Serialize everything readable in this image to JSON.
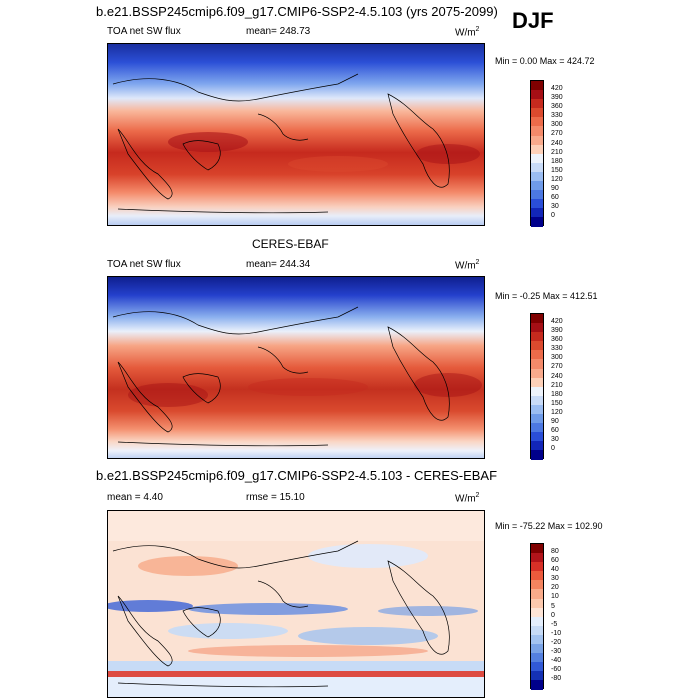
{
  "panel1": {
    "title": "b.e21.BSSP245cmip6.f09_g17.CMIP6-SSP2-4.5.103 (yrs 2075-2099)",
    "left": "TOA net SW flux",
    "center": "mean= 248.73",
    "units": "W/m",
    "units_sup": "2",
    "minmax": "Min =   0.00 Max = 424.72",
    "ticks": [
      "420",
      "390",
      "360",
      "330",
      "300",
      "270",
      "240",
      "210",
      "180",
      "150",
      "120",
      "90",
      "60",
      "30",
      "0"
    ]
  },
  "season": "DJF",
  "panel2": {
    "title": "CERES-EBAF",
    "left": "TOA net SW flux",
    "center": "mean= 244.34",
    "units": "W/m",
    "units_sup": "2",
    "minmax": "Min =  -0.25 Max = 412.51",
    "ticks": [
      "420",
      "390",
      "360",
      "330",
      "300",
      "270",
      "240",
      "210",
      "180",
      "150",
      "120",
      "90",
      "60",
      "30",
      "0"
    ]
  },
  "panel3": {
    "title": "b.e21.BSSP245cmip6.f09_g17.CMIP6-SSP2-4.5.103 - CERES-EBAF",
    "left": "mean =   4.40",
    "center": "rmse =  15.10",
    "units": "W/m",
    "units_sup": "2",
    "minmax": "Min = -75.22 Max = 102.90",
    "ticks": [
      "80",
      "60",
      "40",
      "30",
      "20",
      "10",
      "5",
      "0",
      "-5",
      "-10",
      "-20",
      "-30",
      "-40",
      "-60",
      "-80"
    ]
  },
  "colors": {
    "abs_scale": [
      "#7f0000",
      "#a50f15",
      "#c62a1e",
      "#db4a2e",
      "#ec6b4a",
      "#f48a6a",
      "#f9aa8c",
      "#fdd0b8",
      "#eef3fb",
      "#c9dbf7",
      "#9bbdf2",
      "#6f9be9",
      "#4c78e2",
      "#2a4ed8",
      "#1226b8",
      "#00008b"
    ],
    "diff_scale": [
      "#7f0000",
      "#b2141a",
      "#d73027",
      "#ec5a3c",
      "#f4845f",
      "#f9ab8a",
      "#fcc9ae",
      "#fde4d6",
      "#e4eefc",
      "#c7dbf6",
      "#a3c3f0",
      "#7aa3e6",
      "#5480df",
      "#3159d6",
      "#1431b4",
      "#00008b"
    ]
  }
}
